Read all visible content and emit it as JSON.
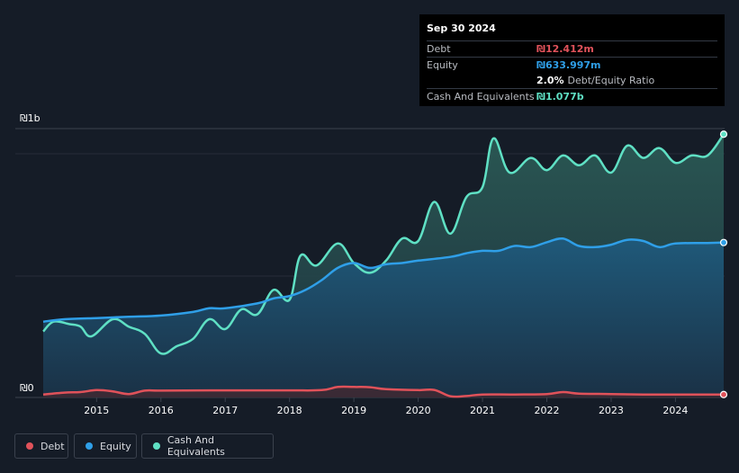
{
  "tooltip": {
    "date": "Sep 30 2024",
    "debt_label": "Debt",
    "debt_value": "₪12.412m",
    "equity_label": "Equity",
    "equity_value": "₪633.997m",
    "ratio_value": "2.0%",
    "ratio_label": "Debt/Equity Ratio",
    "cash_label": "Cash And Equivalents",
    "cash_value": "₪1.077b"
  },
  "colors": {
    "debt": "#e0525a",
    "equity": "#2f9fe8",
    "cash": "#5fe0c4",
    "background": "#151c27"
  },
  "legend": [
    {
      "key": "debt",
      "label": "Debt"
    },
    {
      "key": "equity",
      "label": "Equity"
    },
    {
      "key": "cash",
      "label": "Cash And Equivalents"
    }
  ],
  "chart_data": {
    "type": "area",
    "title": "",
    "y_top_label": "₪1b",
    "y_bottom_label": "₪0",
    "ylim": [
      0,
      1.1
    ],
    "xlim": [
      2014.17,
      2024.75
    ],
    "x_ticks": [
      "2015",
      "2016",
      "2017",
      "2018",
      "2019",
      "2020",
      "2021",
      "2022",
      "2023",
      "2024"
    ],
    "units": "billions ILS",
    "series": [
      {
        "name": "Cash And Equivalents",
        "key": "cash",
        "points": [
          [
            2014.17,
            0.27
          ],
          [
            2014.33,
            0.31
          ],
          [
            2014.58,
            0.3
          ],
          [
            2014.75,
            0.29
          ],
          [
            2014.92,
            0.25
          ],
          [
            2015.25,
            0.32
          ],
          [
            2015.5,
            0.29
          ],
          [
            2015.75,
            0.26
          ],
          [
            2016.0,
            0.18
          ],
          [
            2016.25,
            0.21
          ],
          [
            2016.5,
            0.24
          ],
          [
            2016.75,
            0.32
          ],
          [
            2017.0,
            0.28
          ],
          [
            2017.25,
            0.36
          ],
          [
            2017.5,
            0.34
          ],
          [
            2017.75,
            0.44
          ],
          [
            2018.0,
            0.4
          ],
          [
            2018.17,
            0.58
          ],
          [
            2018.42,
            0.54
          ],
          [
            2018.75,
            0.63
          ],
          [
            2019.0,
            0.55
          ],
          [
            2019.25,
            0.51
          ],
          [
            2019.5,
            0.56
          ],
          [
            2019.75,
            0.65
          ],
          [
            2020.0,
            0.64
          ],
          [
            2020.25,
            0.8
          ],
          [
            2020.5,
            0.67
          ],
          [
            2020.75,
            0.82
          ],
          [
            2021.0,
            0.86
          ],
          [
            2021.17,
            1.06
          ],
          [
            2021.42,
            0.92
          ],
          [
            2021.75,
            0.98
          ],
          [
            2022.0,
            0.93
          ],
          [
            2022.25,
            0.99
          ],
          [
            2022.5,
            0.95
          ],
          [
            2022.75,
            0.99
          ],
          [
            2023.0,
            0.92
          ],
          [
            2023.25,
            1.03
          ],
          [
            2023.5,
            0.98
          ],
          [
            2023.75,
            1.02
          ],
          [
            2024.0,
            0.96
          ],
          [
            2024.25,
            0.99
          ],
          [
            2024.5,
            0.99
          ],
          [
            2024.75,
            1.077
          ]
        ]
      },
      {
        "name": "Equity",
        "key": "equity",
        "points": [
          [
            2014.17,
            0.31
          ],
          [
            2014.5,
            0.32
          ],
          [
            2015.0,
            0.325
          ],
          [
            2015.5,
            0.33
          ],
          [
            2016.0,
            0.335
          ],
          [
            2016.5,
            0.35
          ],
          [
            2016.75,
            0.365
          ],
          [
            2017.0,
            0.365
          ],
          [
            2017.5,
            0.385
          ],
          [
            2017.75,
            0.405
          ],
          [
            2018.0,
            0.415
          ],
          [
            2018.25,
            0.44
          ],
          [
            2018.5,
            0.48
          ],
          [
            2018.75,
            0.53
          ],
          [
            2019.0,
            0.55
          ],
          [
            2019.25,
            0.53
          ],
          [
            2019.5,
            0.545
          ],
          [
            2019.75,
            0.55
          ],
          [
            2020.0,
            0.56
          ],
          [
            2020.5,
            0.575
          ],
          [
            2020.75,
            0.59
          ],
          [
            2021.0,
            0.6
          ],
          [
            2021.25,
            0.6
          ],
          [
            2021.5,
            0.62
          ],
          [
            2021.75,
            0.615
          ],
          [
            2022.0,
            0.635
          ],
          [
            2022.25,
            0.65
          ],
          [
            2022.5,
            0.62
          ],
          [
            2022.75,
            0.615
          ],
          [
            2023.0,
            0.625
          ],
          [
            2023.25,
            0.645
          ],
          [
            2023.5,
            0.64
          ],
          [
            2023.75,
            0.615
          ],
          [
            2024.0,
            0.63
          ],
          [
            2024.5,
            0.632
          ],
          [
            2024.75,
            0.634
          ]
        ]
      },
      {
        "name": "Debt",
        "key": "debt",
        "points": [
          [
            2014.17,
            0.012
          ],
          [
            2014.5,
            0.02
          ],
          [
            2014.75,
            0.022
          ],
          [
            2015.0,
            0.03
          ],
          [
            2015.25,
            0.025
          ],
          [
            2015.5,
            0.014
          ],
          [
            2015.75,
            0.028
          ],
          [
            2016.0,
            0.028
          ],
          [
            2017.0,
            0.029
          ],
          [
            2018.0,
            0.029
          ],
          [
            2018.5,
            0.03
          ],
          [
            2018.75,
            0.043
          ],
          [
            2019.0,
            0.043
          ],
          [
            2019.25,
            0.042
          ],
          [
            2019.5,
            0.034
          ],
          [
            2020.0,
            0.03
          ],
          [
            2020.25,
            0.031
          ],
          [
            2020.5,
            0.005
          ],
          [
            2020.75,
            0.006
          ],
          [
            2021.0,
            0.012
          ],
          [
            2021.5,
            0.012
          ],
          [
            2022.0,
            0.014
          ],
          [
            2022.25,
            0.022
          ],
          [
            2022.5,
            0.016
          ],
          [
            2023.0,
            0.014
          ],
          [
            2023.5,
            0.012
          ],
          [
            2024.0,
            0.012
          ],
          [
            2024.75,
            0.012
          ]
        ]
      }
    ]
  }
}
